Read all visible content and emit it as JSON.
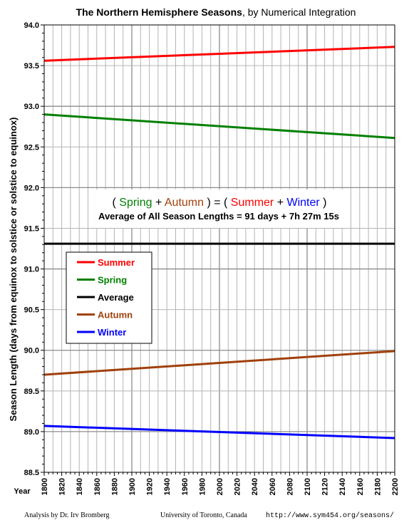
{
  "title": {
    "bold": "The Northern Hemisphere Seasons",
    "rest": ", by Numerical Integration"
  },
  "equation": {
    "open": "( ",
    "spring": "Spring",
    "plus1": " + ",
    "autumn": "Autumn",
    "mid": " ) = ( ",
    "summer": "Summer",
    "plus2": " + ",
    "winter": "Winter",
    "close": " )"
  },
  "average_note": "Average of All Season Lengths = 91 days + 7h 27m 15s",
  "footer": {
    "left": "Analysis by Dr. Irv Bromberg",
    "center": "University of Toronto, Canada",
    "right": "http://www.sym454.org/seasons/"
  },
  "colors": {
    "Summer": "#ff0000",
    "Spring": "#008000",
    "Average": "#000000",
    "Autumn": "#a0400a",
    "Winter": "#0000ff"
  },
  "chart_data": {
    "type": "line",
    "xlabel": "Year",
    "ylabel": "Season Length (days from equinox to solstice or solstice to equinox)",
    "xlim": [
      1800,
      2200
    ],
    "ylim": [
      88.5,
      94.0
    ],
    "x_ticks": [
      1800,
      1820,
      1840,
      1860,
      1880,
      1900,
      1920,
      1940,
      1960,
      1980,
      2000,
      2020,
      2040,
      2060,
      2080,
      2100,
      2120,
      2140,
      2160,
      2180,
      2200
    ],
    "y_ticks": [
      "88.5",
      "89.0",
      "89.5",
      "90.0",
      "90.5",
      "91.0",
      "91.5",
      "92.0",
      "92.5",
      "93.0",
      "93.5",
      "94.0"
    ],
    "grid": true,
    "legend_position": "left-middle",
    "x": [
      1800,
      2200
    ],
    "series": [
      {
        "name": "Summer",
        "values": [
          93.56,
          93.73
        ]
      },
      {
        "name": "Spring",
        "values": [
          92.9,
          92.61
        ]
      },
      {
        "name": "Average",
        "values": [
          91.31,
          91.31
        ]
      },
      {
        "name": "Autumn",
        "values": [
          89.7,
          89.99
        ]
      },
      {
        "name": "Winter",
        "values": [
          89.07,
          88.92
        ]
      }
    ]
  }
}
